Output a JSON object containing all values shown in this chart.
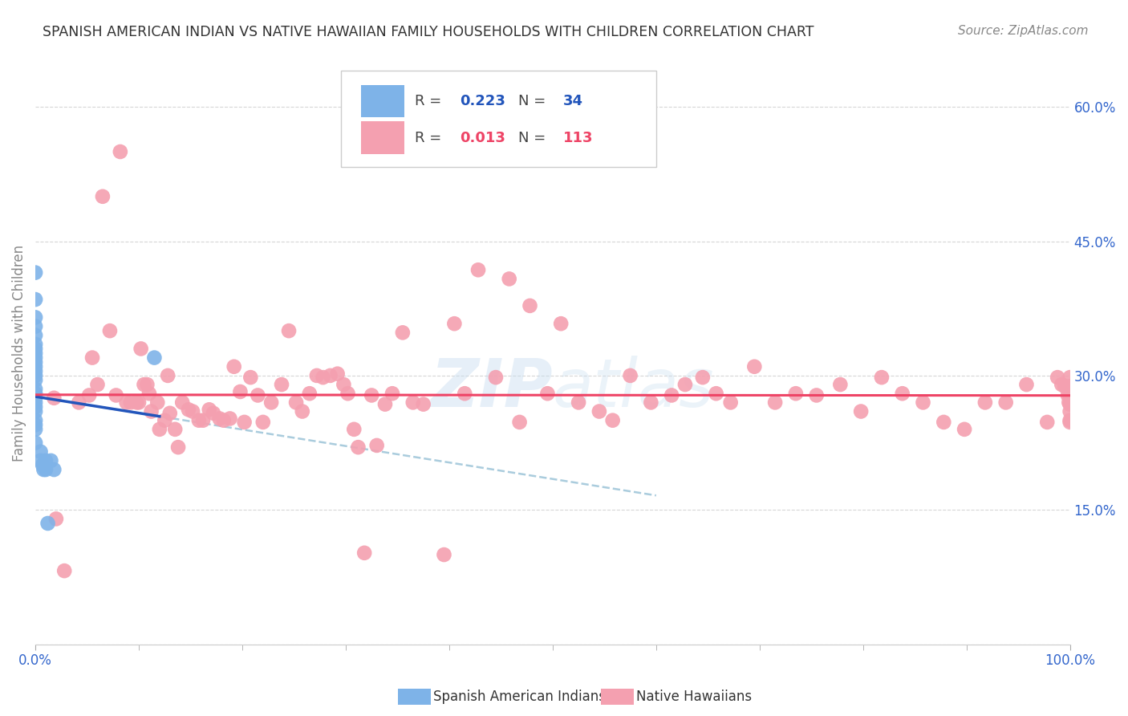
{
  "title": "SPANISH AMERICAN INDIAN VS NATIVE HAWAIIAN FAMILY HOUSEHOLDS WITH CHILDREN CORRELATION CHART",
  "source": "Source: ZipAtlas.com",
  "ylabel": "Family Households with Children",
  "xlim": [
    0.0,
    1.0
  ],
  "ylim": [
    0.0,
    0.65
  ],
  "ytick_vals": [
    0.0,
    0.15,
    0.3,
    0.45,
    0.6
  ],
  "ytick_labels": [
    "",
    "15.0%",
    "30.0%",
    "45.0%",
    "60.0%"
  ],
  "xtick_vals": [
    0.0,
    1.0
  ],
  "xtick_labels": [
    "0.0%",
    "100.0%"
  ],
  "blue_color": "#7eb3e8",
  "pink_color": "#f4a0b0",
  "blue_line_color": "#2255bb",
  "pink_line_color": "#ee4466",
  "dashed_line_color": "#aaccdd",
  "tick_color": "#3366cc",
  "grid_color": "#cccccc",
  "watermark": "ZIPatlas",
  "legend_R1": "0.223",
  "legend_N1": "34",
  "legend_R2": "0.013",
  "legend_N2": "113",
  "blue_scatter_x": [
    0.0,
    0.0,
    0.0,
    0.0,
    0.0,
    0.0,
    0.0,
    0.0,
    0.0,
    0.0,
    0.0,
    0.0,
    0.0,
    0.0,
    0.0,
    0.0,
    0.0,
    0.0,
    0.0,
    0.0,
    0.0,
    0.0,
    0.0,
    0.0,
    0.005,
    0.005,
    0.007,
    0.008,
    0.01,
    0.01,
    0.012,
    0.015,
    0.018,
    0.115
  ],
  "blue_scatter_y": [
    0.415,
    0.385,
    0.365,
    0.355,
    0.345,
    0.335,
    0.33,
    0.325,
    0.32,
    0.315,
    0.31,
    0.305,
    0.3,
    0.295,
    0.285,
    0.28,
    0.275,
    0.27,
    0.265,
    0.26,
    0.25,
    0.245,
    0.24,
    0.225,
    0.215,
    0.205,
    0.2,
    0.195,
    0.205,
    0.195,
    0.135,
    0.205,
    0.195,
    0.32
  ],
  "pink_scatter_x": [
    0.018,
    0.02,
    0.028,
    0.042,
    0.052,
    0.055,
    0.06,
    0.065,
    0.072,
    0.078,
    0.082,
    0.088,
    0.092,
    0.098,
    0.1,
    0.102,
    0.105,
    0.108,
    0.11,
    0.112,
    0.118,
    0.12,
    0.125,
    0.128,
    0.13,
    0.135,
    0.138,
    0.142,
    0.148,
    0.152,
    0.158,
    0.162,
    0.168,
    0.172,
    0.178,
    0.182,
    0.188,
    0.192,
    0.198,
    0.202,
    0.208,
    0.215,
    0.22,
    0.228,
    0.238,
    0.245,
    0.252,
    0.258,
    0.265,
    0.272,
    0.278,
    0.285,
    0.292,
    0.298,
    0.302,
    0.308,
    0.312,
    0.318,
    0.325,
    0.33,
    0.338,
    0.345,
    0.355,
    0.365,
    0.375,
    0.395,
    0.405,
    0.415,
    0.428,
    0.445,
    0.458,
    0.468,
    0.478,
    0.495,
    0.508,
    0.525,
    0.545,
    0.558,
    0.575,
    0.595,
    0.615,
    0.628,
    0.645,
    0.658,
    0.672,
    0.695,
    0.715,
    0.735,
    0.755,
    0.778,
    0.798,
    0.818,
    0.838,
    0.858,
    0.878,
    0.898,
    0.918,
    0.938,
    0.958,
    0.978,
    0.988,
    0.992,
    0.995,
    0.998,
    0.999,
    1.0,
    1.0,
    1.0,
    1.0,
    1.0,
    1.0,
    1.0,
    1.0
  ],
  "pink_scatter_y": [
    0.275,
    0.14,
    0.082,
    0.27,
    0.278,
    0.32,
    0.29,
    0.5,
    0.35,
    0.278,
    0.55,
    0.27,
    0.27,
    0.27,
    0.27,
    0.33,
    0.29,
    0.29,
    0.28,
    0.26,
    0.27,
    0.24,
    0.25,
    0.3,
    0.258,
    0.24,
    0.22,
    0.27,
    0.262,
    0.26,
    0.25,
    0.25,
    0.262,
    0.258,
    0.252,
    0.25,
    0.252,
    0.31,
    0.282,
    0.248,
    0.298,
    0.278,
    0.248,
    0.27,
    0.29,
    0.35,
    0.27,
    0.26,
    0.28,
    0.3,
    0.298,
    0.3,
    0.302,
    0.29,
    0.28,
    0.24,
    0.22,
    0.102,
    0.278,
    0.222,
    0.268,
    0.28,
    0.348,
    0.27,
    0.268,
    0.1,
    0.358,
    0.28,
    0.418,
    0.298,
    0.408,
    0.248,
    0.378,
    0.28,
    0.358,
    0.27,
    0.26,
    0.25,
    0.3,
    0.27,
    0.278,
    0.29,
    0.298,
    0.28,
    0.27,
    0.31,
    0.27,
    0.28,
    0.278,
    0.29,
    0.26,
    0.298,
    0.28,
    0.27,
    0.248,
    0.24,
    0.27,
    0.27,
    0.29,
    0.248,
    0.298,
    0.29,
    0.288,
    0.278,
    0.27,
    0.26,
    0.25,
    0.268,
    0.288,
    0.278,
    0.298,
    0.278,
    0.248
  ]
}
